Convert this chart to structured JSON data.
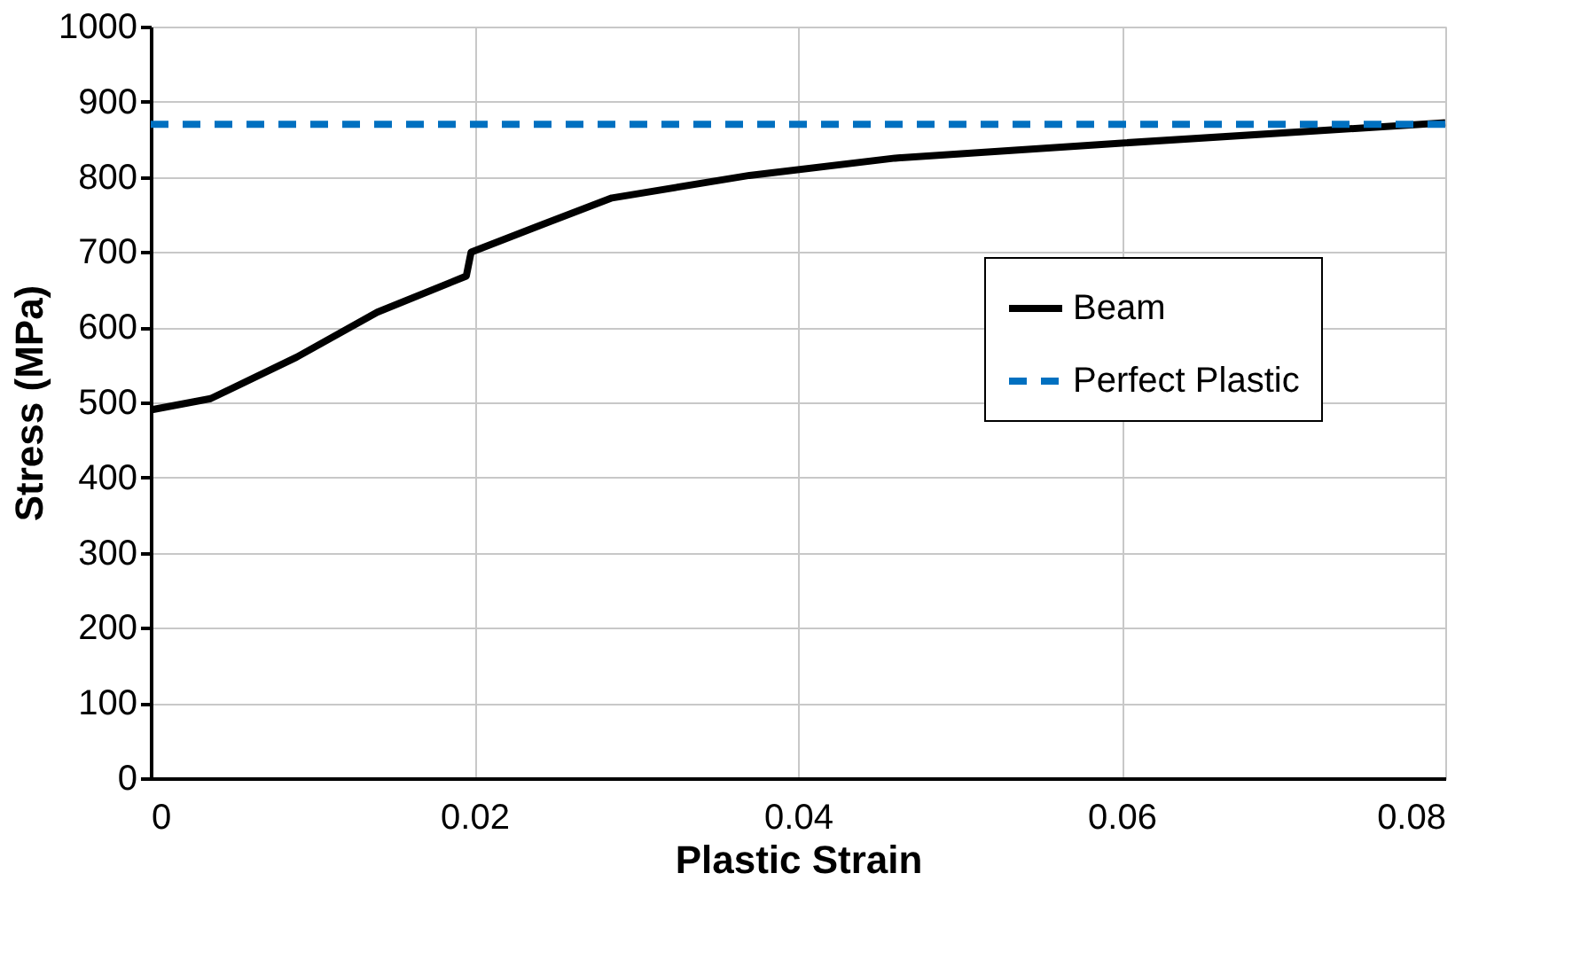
{
  "chart_data": {
    "type": "line",
    "xlabel": "Plastic Strain",
    "ylabel": "Stress (MPa)",
    "xlim": [
      0,
      0.08
    ],
    "xticks": [
      0,
      0.02,
      0.04,
      0.06,
      0.08
    ],
    "ylim": [
      0,
      1000
    ],
    "yticks": [
      0,
      100,
      200,
      300,
      400,
      500,
      600,
      700,
      800,
      900,
      1000
    ],
    "grid": true,
    "legend": "right",
    "marker": "none",
    "series": [
      {
        "name": "Beam",
        "color": "#000000",
        "line_style": "solid",
        "x": [
          0,
          0.0037,
          0.009,
          0.014,
          0.0195,
          0.0198,
          0.024,
          0.0285,
          0.037,
          0.046,
          0.06,
          0.08
        ],
        "values": [
          490,
          505,
          560,
          620,
          668,
          700,
          735,
          772,
          802,
          825,
          845,
          872
        ]
      },
      {
        "name": "Perfect Plastic",
        "color": "#0070c0",
        "line_style": "dashed",
        "x": [
          0,
          0.08
        ],
        "values": [
          870,
          870
        ]
      }
    ]
  }
}
